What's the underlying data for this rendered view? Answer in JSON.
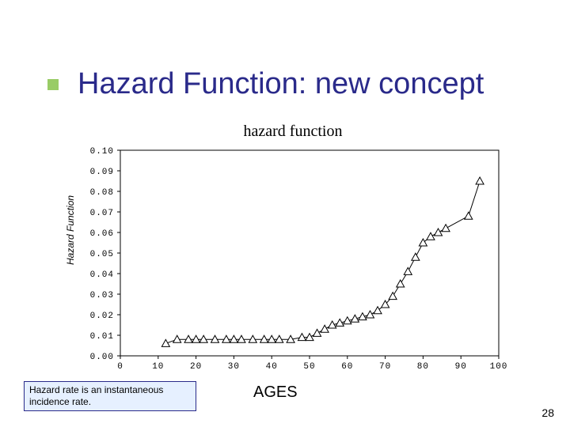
{
  "slide": {
    "title": "Hazard Function: new concept",
    "title_color": "#2a2a8a",
    "title_fontsize": 38,
    "bullet_color": "#99cc66",
    "page_number": "28"
  },
  "chart": {
    "type": "line",
    "title": "hazard  function",
    "title_fontsize": 20,
    "ylabel": "Hazard Function",
    "ylabel_fontsize": 12,
    "xlabel": "AGES",
    "xlabel_fontsize": 20,
    "xlim": [
      0,
      100
    ],
    "ylim": [
      0,
      0.1
    ],
    "xtick_positions": [
      0,
      10,
      20,
      30,
      40,
      50,
      60,
      70,
      80,
      90,
      100
    ],
    "xtick_labels": [
      "0",
      "10",
      "20",
      "30",
      "40",
      "50",
      "60",
      "70",
      "80",
      "90",
      "100"
    ],
    "ytick_positions": [
      0.0,
      0.01,
      0.02,
      0.03,
      0.04,
      0.05,
      0.06,
      0.07,
      0.08,
      0.09,
      0.1
    ],
    "ytick_labels": [
      "0.00",
      "0.01",
      "0.02",
      "0.03",
      "0.04",
      "0.05",
      "0.06",
      "0.07",
      "0.08",
      "0.09",
      "0.10"
    ],
    "marker_style": "triangle",
    "marker_size": 5,
    "line_color": "#000000",
    "line_width": 1,
    "axis_color": "#000000",
    "background_color": "#ffffff",
    "grid": false,
    "data": {
      "x": [
        12,
        15,
        18,
        20,
        22,
        25,
        28,
        30,
        32,
        35,
        38,
        40,
        42,
        45,
        48,
        50,
        52,
        54,
        56,
        58,
        60,
        62,
        64,
        66,
        68,
        70,
        72,
        74,
        76,
        78,
        80,
        82,
        84,
        86,
        92,
        95
      ],
      "y": [
        0.006,
        0.008,
        0.008,
        0.008,
        0.008,
        0.008,
        0.008,
        0.008,
        0.008,
        0.008,
        0.008,
        0.008,
        0.008,
        0.008,
        0.009,
        0.009,
        0.011,
        0.013,
        0.015,
        0.016,
        0.017,
        0.018,
        0.019,
        0.02,
        0.022,
        0.025,
        0.029,
        0.035,
        0.041,
        0.048,
        0.055,
        0.058,
        0.06,
        0.062,
        0.068,
        0.085
      ]
    }
  },
  "caption": {
    "line1": "Hazard rate is an instantaneous",
    "line2": "incidence rate.",
    "bg_color": "#e6f0ff",
    "border_color": "#2a2a8a",
    "fontsize": 12
  }
}
